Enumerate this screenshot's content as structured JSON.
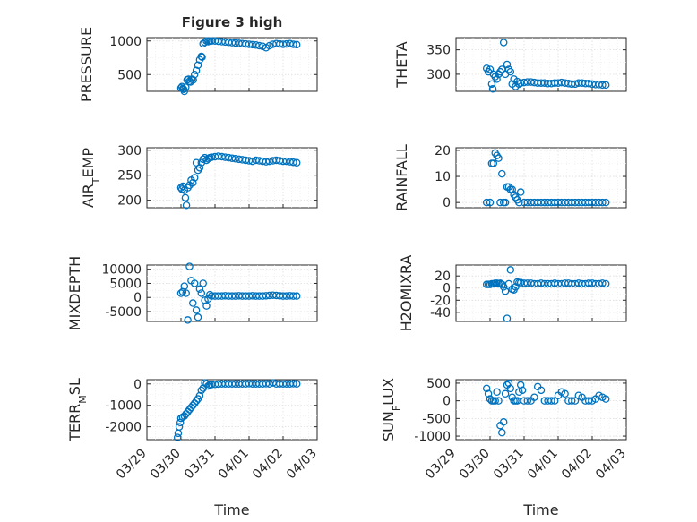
{
  "figure": {
    "title": "Figure 3 high",
    "xlabel": "Time",
    "marker_color": "#0072BD"
  },
  "chart_data": [
    {
      "type": "scatter",
      "name": "pressure",
      "ylabel": "PRESSURE",
      "ylabel_sub": "",
      "ylim": [
        250,
        1050
      ],
      "yticks": [
        500,
        1000
      ],
      "yticklabels": [
        "500",
        "1000"
      ],
      "xlim": [
        0,
        5
      ],
      "xticks": [],
      "xticklabels": [],
      "series": [
        {
          "name": "PRESSURE",
          "x": [
            1.0,
            1.03,
            1.06,
            1.08,
            1.1,
            1.14,
            1.18,
            1.22,
            1.25,
            1.28,
            1.32,
            1.36,
            1.4,
            1.45,
            1.5,
            1.55,
            1.6,
            1.62,
            1.65,
            1.7,
            1.75,
            1.8,
            1.85,
            1.9,
            2.0,
            2.1,
            2.2,
            2.3,
            2.4,
            2.5,
            2.6,
            2.7,
            2.8,
            2.9,
            3.0,
            3.1,
            3.2,
            3.3,
            3.4,
            3.5,
            3.6,
            3.7,
            3.8,
            3.9,
            4.0,
            4.1,
            4.2,
            4.3,
            4.4
          ],
          "y": [
            300,
            320,
            290,
            280,
            250,
            310,
            420,
            430,
            400,
            390,
            430,
            420,
            500,
            560,
            640,
            720,
            770,
            760,
            960,
            980,
            1000,
            990,
            1000,
            1000,
            1000,
            995,
            990,
            985,
            980,
            975,
            970,
            965,
            960,
            955,
            950,
            945,
            940,
            930,
            920,
            900,
            930,
            950,
            960,
            955,
            950,
            955,
            960,
            950,
            945
          ]
        }
      ]
    },
    {
      "type": "scatter",
      "name": "theta",
      "ylabel": "THETA",
      "ylabel_sub": "",
      "ylim": [
        265,
        375
      ],
      "yticks": [
        300,
        350
      ],
      "yticklabels": [
        "300",
        "350"
      ],
      "xlim": [
        0,
        5
      ],
      "xticks": [],
      "xticklabels": [],
      "series": [
        {
          "name": "THETA",
          "x": [
            0.9,
            0.95,
            1.0,
            1.05,
            1.08,
            1.1,
            1.15,
            1.2,
            1.25,
            1.3,
            1.35,
            1.4,
            1.45,
            1.5,
            1.55,
            1.6,
            1.65,
            1.7,
            1.75,
            1.8,
            1.85,
            1.9,
            2.0,
            2.1,
            2.2,
            2.3,
            2.4,
            2.5,
            2.6,
            2.7,
            2.8,
            2.9,
            3.0,
            3.1,
            3.2,
            3.3,
            3.4,
            3.5,
            3.6,
            3.7,
            3.8,
            3.9,
            4.0,
            4.1,
            4.2,
            4.3,
            4.4
          ],
          "y": [
            312,
            305,
            310,
            280,
            270,
            300,
            295,
            290,
            300,
            305,
            310,
            365,
            300,
            320,
            310,
            305,
            280,
            290,
            275,
            285,
            280,
            282,
            283,
            284,
            284,
            283,
            282,
            282,
            282,
            281,
            281,
            282,
            282,
            283,
            282,
            281,
            280,
            280,
            282,
            282,
            281,
            281,
            280,
            279,
            279,
            278,
            278
          ]
        }
      ]
    },
    {
      "type": "scatter",
      "name": "air-temp",
      "ylabel": "AIR",
      "ylabel_sub": "T",
      "ylabel_suffix": "EMP",
      "ylim": [
        185,
        305
      ],
      "yticks": [
        200,
        250,
        300
      ],
      "yticklabels": [
        "200",
        "250",
        "300"
      ],
      "xlim": [
        0,
        5
      ],
      "xticks": [],
      "xticklabels": [],
      "series": [
        {
          "name": "AIR_TEMP",
          "x": [
            1.0,
            1.03,
            1.06,
            1.1,
            1.13,
            1.16,
            1.2,
            1.25,
            1.3,
            1.35,
            1.4,
            1.45,
            1.5,
            1.55,
            1.6,
            1.65,
            1.7,
            1.75,
            1.8,
            1.85,
            1.9,
            2.0,
            2.1,
            2.2,
            2.3,
            2.4,
            2.5,
            2.6,
            2.7,
            2.8,
            2.9,
            3.0,
            3.1,
            3.2,
            3.3,
            3.4,
            3.5,
            3.6,
            3.7,
            3.8,
            3.9,
            4.0,
            4.1,
            4.2,
            4.3,
            4.4
          ],
          "y": [
            225,
            222,
            228,
            220,
            205,
            190,
            225,
            230,
            240,
            235,
            245,
            275,
            260,
            265,
            275,
            282,
            285,
            280,
            283,
            285,
            286,
            287,
            288,
            287,
            286,
            285,
            284,
            283,
            282,
            281,
            280,
            279,
            278,
            280,
            279,
            278,
            277,
            278,
            279,
            280,
            279,
            278,
            278,
            277,
            276,
            275
          ]
        }
      ]
    },
    {
      "type": "scatter",
      "name": "rainfall",
      "ylabel": "RAINFALL",
      "ylabel_sub": "",
      "ylim": [
        -2,
        21
      ],
      "yticks": [
        0,
        10,
        20
      ],
      "yticklabels": [
        "0",
        "10",
        "20"
      ],
      "xlim": [
        0,
        5
      ],
      "xticks": [],
      "xticklabels": [],
      "series": [
        {
          "name": "RAINFALL",
          "x": [
            0.9,
            1.0,
            1.05,
            1.1,
            1.15,
            1.2,
            1.25,
            1.3,
            1.35,
            1.4,
            1.45,
            1.5,
            1.55,
            1.6,
            1.65,
            1.7,
            1.75,
            1.8,
            1.85,
            1.9,
            2.0,
            2.1,
            2.2,
            2.3,
            2.4,
            2.5,
            2.6,
            2.7,
            2.8,
            2.9,
            3.0,
            3.1,
            3.2,
            3.3,
            3.4,
            3.5,
            3.6,
            3.7,
            3.8,
            3.9,
            4.0,
            4.1,
            4.2,
            4.3,
            4.4
          ],
          "y": [
            0,
            0,
            15,
            15,
            19,
            18,
            17,
            0,
            11,
            0,
            0,
            6,
            6,
            5,
            5,
            3,
            2,
            1,
            0,
            4,
            0,
            0,
            0,
            0,
            0,
            0,
            0,
            0,
            0,
            0,
            0,
            0,
            0,
            0,
            0,
            0,
            0,
            0,
            0,
            0,
            0,
            0,
            0,
            0,
            0
          ]
        }
      ]
    },
    {
      "type": "scatter",
      "name": "mixdepth",
      "ylabel": "MIXDEPTH",
      "ylabel_sub": "",
      "ylim": [
        -8500,
        11500
      ],
      "yticks": [
        -5000,
        0,
        5000,
        10000
      ],
      "yticklabels": [
        "-5000",
        "0",
        "5000",
        "10000"
      ],
      "xlim": [
        0,
        5
      ],
      "xticks": [],
      "xticklabels": [],
      "series": [
        {
          "name": "MIXDEPTH",
          "x": [
            1.0,
            1.05,
            1.1,
            1.15,
            1.2,
            1.25,
            1.3,
            1.35,
            1.4,
            1.45,
            1.5,
            1.55,
            1.6,
            1.65,
            1.7,
            1.75,
            1.8,
            1.85,
            1.9,
            2.0,
            2.1,
            2.2,
            2.3,
            2.4,
            2.5,
            2.6,
            2.7,
            2.8,
            2.9,
            3.0,
            3.1,
            3.2,
            3.3,
            3.4,
            3.5,
            3.6,
            3.7,
            3.8,
            3.9,
            4.0,
            4.1,
            4.2,
            4.3,
            4.4
          ],
          "y": [
            1500,
            2000,
            4000,
            1500,
            -8000,
            11000,
            6000,
            -2000,
            5000,
            -4500,
            -7000,
            3000,
            1500,
            5000,
            -1000,
            -3000,
            -500,
            1000,
            500,
            500,
            500,
            500,
            600,
            500,
            500,
            500,
            600,
            500,
            500,
            500,
            600,
            500,
            500,
            500,
            600,
            700,
            800,
            700,
            600,
            500,
            500,
            600,
            500,
            500
          ]
        }
      ]
    },
    {
      "type": "scatter",
      "name": "h2o-mixratio",
      "ylabel": "H2OMIXRA",
      "ylabel_sub": "",
      "ylim": [
        -55,
        38
      ],
      "yticks": [
        -40,
        -20,
        0,
        20
      ],
      "yticklabels": [
        "-40",
        "-20",
        "0",
        "20"
      ],
      "xlim": [
        0,
        5
      ],
      "xticks": [],
      "xticklabels": [],
      "series": [
        {
          "name": "H2OMIXRA",
          "x": [
            0.9,
            0.95,
            1.0,
            1.05,
            1.1,
            1.15,
            1.2,
            1.25,
            1.3,
            1.35,
            1.4,
            1.45,
            1.5,
            1.55,
            1.6,
            1.65,
            1.7,
            1.75,
            1.8,
            1.85,
            1.9,
            2.0,
            2.1,
            2.2,
            2.3,
            2.4,
            2.5,
            2.6,
            2.7,
            2.8,
            2.9,
            3.0,
            3.1,
            3.2,
            3.3,
            3.4,
            3.5,
            3.6,
            3.7,
            3.8,
            3.9,
            4.0,
            4.1,
            4.2,
            4.3,
            4.4
          ],
          "y": [
            6,
            6,
            6,
            7,
            7,
            8,
            8,
            7,
            8,
            6,
            2,
            -5,
            -50,
            7,
            30,
            -2,
            -3,
            2,
            10,
            9,
            9,
            8,
            8,
            8,
            7,
            7,
            8,
            7,
            7,
            7,
            8,
            7,
            7,
            8,
            8,
            7,
            7,
            8,
            7,
            7,
            8,
            8,
            7,
            7,
            8,
            7
          ]
        }
      ]
    },
    {
      "type": "scatter",
      "name": "terr-msl",
      "ylabel": "TERR",
      "ylabel_sub": "M",
      "ylabel_suffix": "SL",
      "ylim": [
        -2600,
        200
      ],
      "yticks": [
        -2000,
        -1000,
        0
      ],
      "yticklabels": [
        "-2000",
        "-1000",
        "0"
      ],
      "xlim": [
        0,
        5
      ],
      "xticks": [
        0,
        1,
        2,
        3,
        4,
        5
      ],
      "xticklabels": [
        "03/29",
        "03/30",
        "03/31",
        "04/01",
        "04/02",
        "04/03"
      ],
      "series": [
        {
          "name": "TERR_MSL",
          "x": [
            0.9,
            0.92,
            0.95,
            0.98,
            1.0,
            1.05,
            1.1,
            1.15,
            1.2,
            1.25,
            1.3,
            1.35,
            1.4,
            1.45,
            1.5,
            1.55,
            1.6,
            1.65,
            1.7,
            1.75,
            1.8,
            1.85,
            1.9,
            2.0,
            2.1,
            2.2,
            2.3,
            2.4,
            2.5,
            2.6,
            2.7,
            2.8,
            2.9,
            3.0,
            3.1,
            3.2,
            3.3,
            3.4,
            3.5,
            3.6,
            3.7,
            3.8,
            3.9,
            4.0,
            4.1,
            4.2,
            4.3,
            4.4
          ],
          "y": [
            -2500,
            -2300,
            -2000,
            -1800,
            -1600,
            -1550,
            -1500,
            -1400,
            -1300,
            -1200,
            -1100,
            -1000,
            -900,
            -800,
            -700,
            -550,
            -300,
            -200,
            50,
            0,
            -100,
            -50,
            -30,
            -20,
            -10,
            0,
            0,
            0,
            0,
            0,
            0,
            0,
            0,
            10,
            0,
            0,
            0,
            0,
            10,
            0,
            50,
            0,
            0,
            0,
            0,
            0,
            10,
            0
          ]
        }
      ]
    },
    {
      "type": "scatter",
      "name": "sun-flux",
      "ylabel": "SUN",
      "ylabel_sub": "F",
      "ylabel_suffix": "LUX",
      "ylim": [
        -1100,
        600
      ],
      "yticks": [
        -1000,
        -500,
        0,
        500
      ],
      "yticklabels": [
        "-1000",
        "-500",
        "0",
        "500"
      ],
      "xlim": [
        0,
        5
      ],
      "xticks": [
        0,
        1,
        2,
        3,
        4,
        5
      ],
      "xticklabels": [
        "03/29",
        "03/30",
        "03/31",
        "04/01",
        "04/02",
        "04/03"
      ],
      "series": [
        {
          "name": "SUN_FLUX",
          "x": [
            0.9,
            0.95,
            1.0,
            1.05,
            1.1,
            1.15,
            1.2,
            1.25,
            1.3,
            1.35,
            1.4,
            1.45,
            1.5,
            1.55,
            1.6,
            1.65,
            1.7,
            1.75,
            1.8,
            1.85,
            1.9,
            1.95,
            2.0,
            2.1,
            2.2,
            2.3,
            2.4,
            2.5,
            2.6,
            2.7,
            2.8,
            2.9,
            3.0,
            3.1,
            3.2,
            3.3,
            3.4,
            3.5,
            3.6,
            3.7,
            3.8,
            3.9,
            4.0,
            4.1,
            4.2,
            4.3,
            4.4
          ],
          "y": [
            350,
            200,
            50,
            0,
            0,
            0,
            250,
            0,
            -700,
            -900,
            -600,
            200,
            450,
            500,
            350,
            100,
            0,
            0,
            0,
            250,
            450,
            300,
            0,
            0,
            0,
            100,
            400,
            300,
            0,
            0,
            0,
            0,
            150,
            250,
            200,
            0,
            0,
            0,
            150,
            100,
            0,
            0,
            0,
            50,
            150,
            100,
            50
          ]
        }
      ]
    }
  ]
}
